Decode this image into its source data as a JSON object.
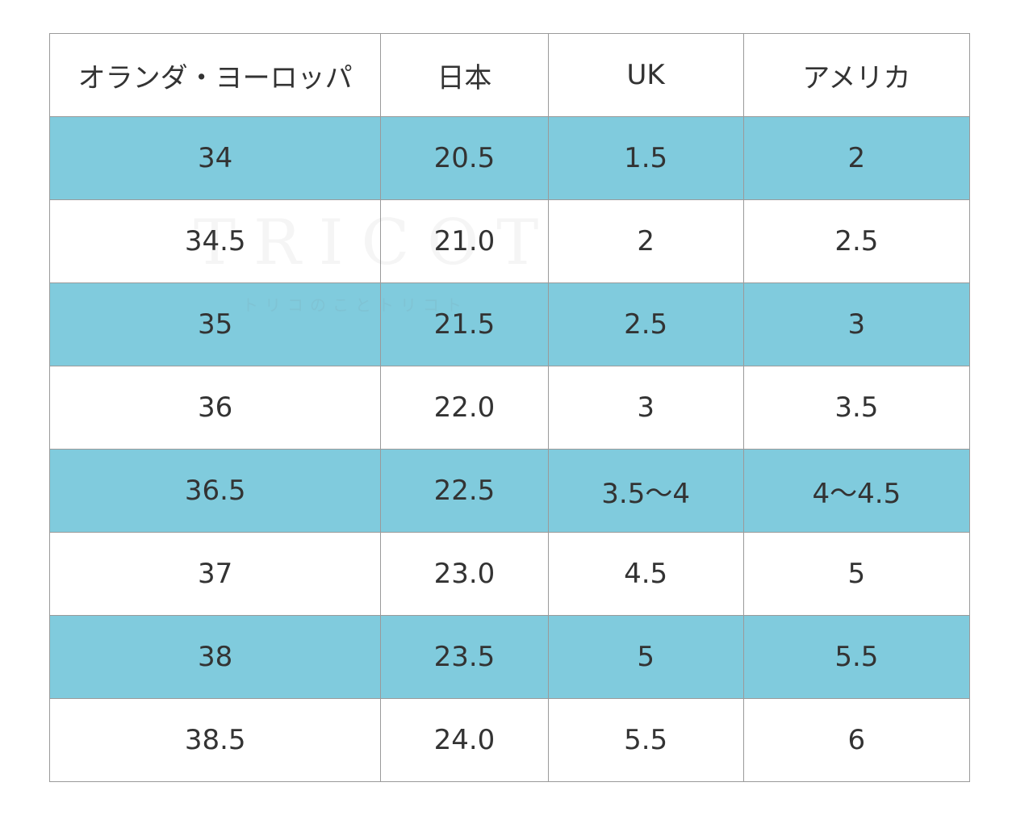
{
  "table": {
    "headers": [
      "オランダ・ヨーロッパ",
      "日本",
      "UK",
      "アメリカ"
    ],
    "rows": [
      [
        "34",
        "20.5",
        "1.5",
        "2"
      ],
      [
        "34.5",
        "21.0",
        "2",
        "2.5"
      ],
      [
        "35",
        "21.5",
        "2.5",
        "3"
      ],
      [
        "36",
        "22.0",
        "3",
        "3.5"
      ],
      [
        "36.5",
        "22.5",
        "3.5～4",
        "4～4.5"
      ],
      [
        "37",
        "23.0",
        "4.5",
        "5"
      ],
      [
        "38",
        "23.5",
        "5",
        "5.5"
      ],
      [
        "38.5",
        "24.0",
        "5.5",
        "6"
      ]
    ]
  },
  "watermark": {
    "logo": "TRICOT",
    "subtitle": "トリコのことトリコト"
  },
  "colors": {
    "stripe": "#80cbdd",
    "border": "#9a9a9a",
    "text": "#333333"
  }
}
